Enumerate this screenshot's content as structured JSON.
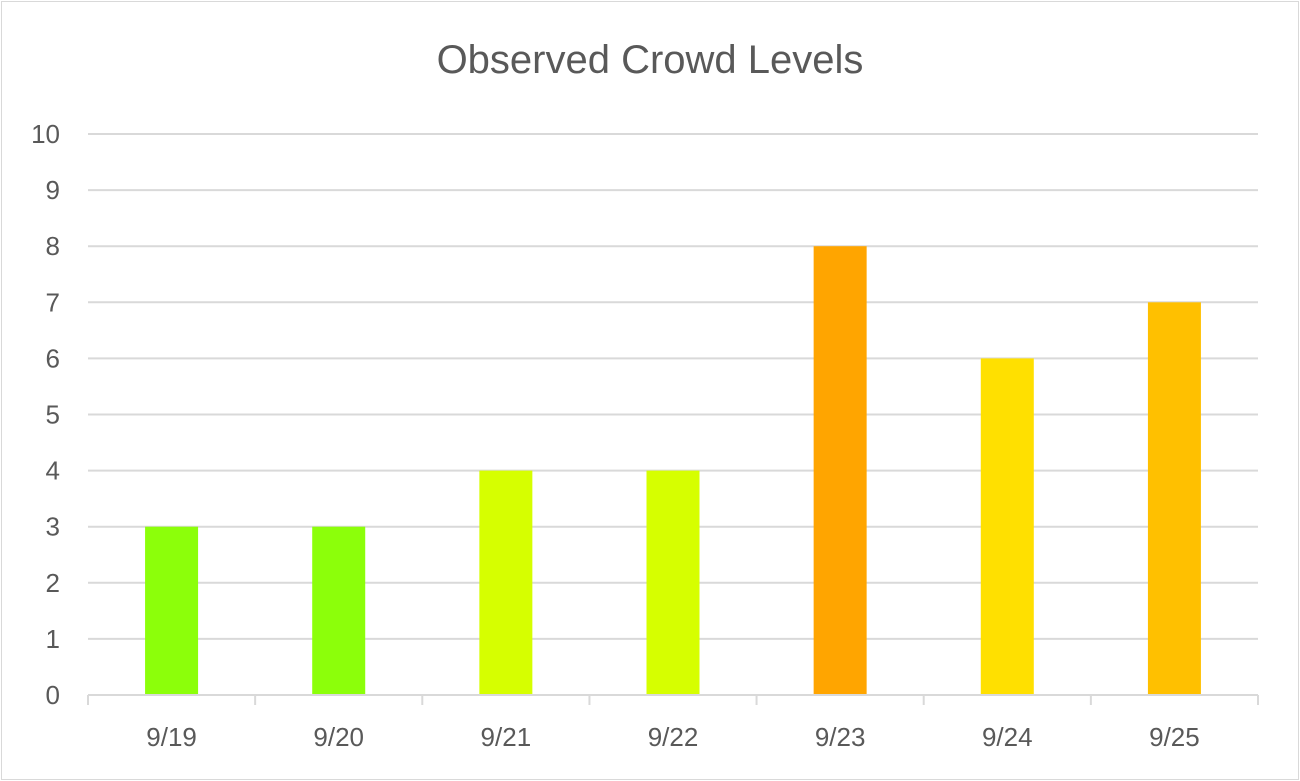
{
  "chart_data": {
    "type": "bar",
    "title": "Observed Crowd Levels",
    "categories": [
      "9/19",
      "9/20",
      "9/21",
      "9/22",
      "9/23",
      "9/24",
      "9/25"
    ],
    "values": [
      3,
      3,
      4,
      4,
      8,
      6,
      7
    ],
    "bar_colors": [
      "#8cff0a",
      "#8cff0a",
      "#d6ff00",
      "#d6ff00",
      "#ffa500",
      "#ffe000",
      "#ffc000"
    ],
    "ylim": [
      0,
      10
    ],
    "y_ticks": [
      "0",
      "1",
      "2",
      "3",
      "4",
      "5",
      "6",
      "7",
      "8",
      "9",
      "10"
    ],
    "grid": true,
    "legend": "none",
    "gridline_color": "#d9d9d9",
    "text_color": "#595959"
  }
}
